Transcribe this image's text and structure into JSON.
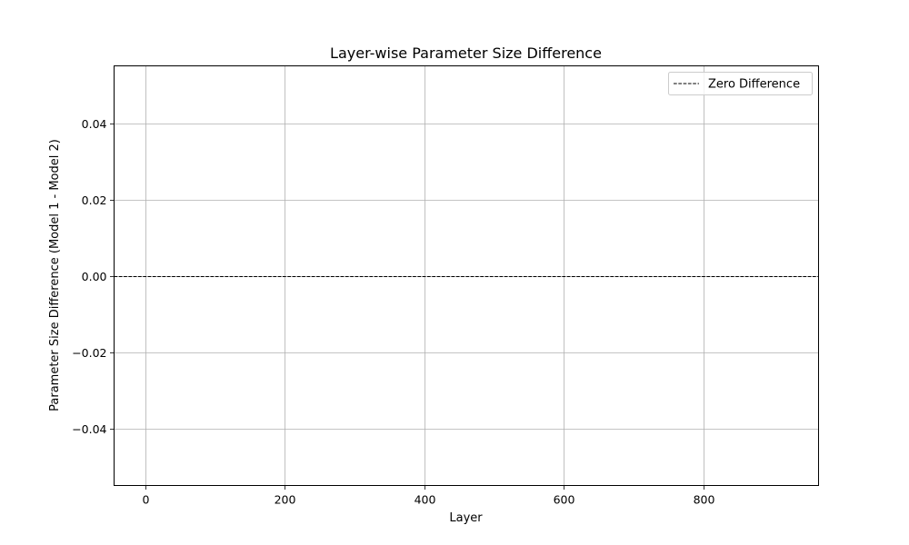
{
  "chart_data": {
    "type": "line",
    "title": "Layer-wise Parameter Size Difference",
    "xlabel": "Layer",
    "ylabel": "Parameter Size Difference (Model 1 - Model 2)",
    "xlim": [
      -45,
      965
    ],
    "ylim": [
      -0.055,
      0.055
    ],
    "xticks": [
      0,
      200,
      400,
      600,
      800
    ],
    "xtick_labels": [
      "0",
      "200",
      "400",
      "600",
      "800"
    ],
    "yticks": [
      0.04,
      0.02,
      0.0,
      -0.02,
      -0.04
    ],
    "ytick_labels": [
      "0.04",
      "0.02",
      "0.00",
      "−0.02",
      "−0.04"
    ],
    "grid": true,
    "legend_position": "top-right",
    "series": [
      {
        "name": "Zero Difference",
        "style": "dashed",
        "color": "#000000",
        "x": [
          -45,
          965
        ],
        "y": [
          0,
          0
        ]
      }
    ]
  }
}
